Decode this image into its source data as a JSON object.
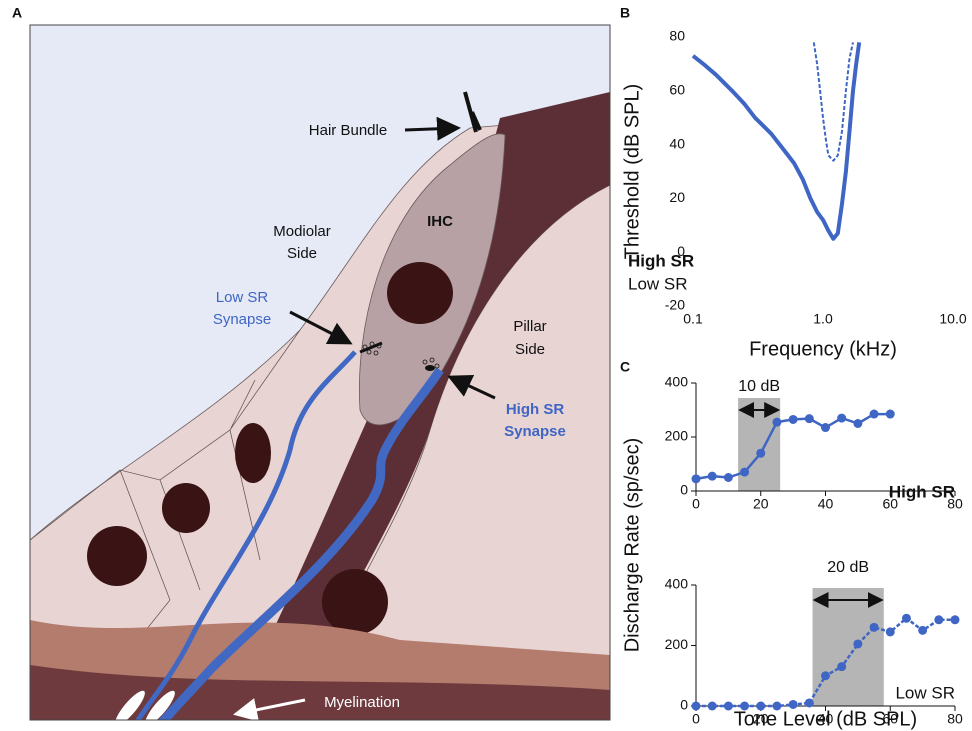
{
  "panel_labels": {
    "a": "A",
    "b": "B",
    "c": "C"
  },
  "diagram": {
    "hair_bundle": "Hair Bundle",
    "ihc": "IHC",
    "modiolar_side": [
      "Modiolar",
      "Side"
    ],
    "low_sr_synapse": [
      "Low SR",
      "Synapse"
    ],
    "pillar_side": [
      "Pillar",
      "Side"
    ],
    "high_sr_synapse": [
      "High SR",
      "Synapse"
    ],
    "myelination": "Myelination"
  },
  "chart_data": [
    {
      "type": "line",
      "xlabel": "Frequency (kHz)",
      "ylabel": "Threshold (dB SPL)",
      "xlog": true,
      "xlim": [
        0.1,
        10
      ],
      "xticks": [
        0.1,
        {
          "value": 1,
          "label": "1.0"
        },
        {
          "value": 10,
          "label": "10.0"
        }
      ],
      "ylim": [
        -20,
        80
      ],
      "yticks": [
        -20,
        0,
        20,
        40,
        60,
        80
      ],
      "axis_lines": false,
      "series": [
        {
          "name": "High SR",
          "color": "#3f66c4",
          "style": "solid",
          "x": [
            0.1,
            0.12,
            0.15,
            0.2,
            0.25,
            0.3,
            0.4,
            0.5,
            0.6,
            0.7,
            0.8,
            0.9,
            1.0,
            1.1,
            1.2,
            1.3,
            1.4,
            1.5,
            1.6,
            1.7,
            1.8,
            1.9
          ],
          "values": [
            73,
            70,
            66,
            60,
            55,
            50,
            44,
            38,
            33,
            27,
            20,
            15,
            12,
            8,
            5,
            7,
            18,
            30,
            45,
            60,
            70,
            78
          ]
        },
        {
          "name": "Low SR",
          "color": "#3f66c4",
          "style": "dashed",
          "x": [
            0.85,
            0.9,
            0.95,
            1.0,
            1.05,
            1.1,
            1.2,
            1.3,
            1.4,
            1.5,
            1.6,
            1.7
          ],
          "values": [
            78,
            70,
            60,
            50,
            42,
            36,
            34,
            36,
            45,
            60,
            72,
            78
          ]
        }
      ]
    },
    {
      "type": "line",
      "ylabel": "Discharge Rate (sp/sec)",
      "xlim": [
        0,
        80
      ],
      "xticks": [
        0,
        20,
        40,
        60,
        80
      ],
      "ylim": [
        0,
        400
      ],
      "yticks": [
        0,
        200,
        400
      ],
      "axis_lines": true,
      "band": [
        13,
        26
      ],
      "band_label": "10 dB",
      "x": [
        0,
        5,
        10,
        15,
        20,
        25,
        30,
        35,
        40,
        45,
        50,
        55,
        60
      ],
      "series": [
        {
          "name": "High SR",
          "color": "#3f66c4",
          "style": "solid",
          "values": [
            45,
            55,
            50,
            70,
            140,
            255,
            265,
            268,
            235,
            270,
            250,
            285,
            285
          ]
        }
      ]
    },
    {
      "type": "line",
      "xlabel": "Tone Level (dB SPL)",
      "xlim": [
        0,
        80
      ],
      "xticks": [
        0,
        20,
        40,
        60,
        80
      ],
      "ylim": [
        0,
        400
      ],
      "yticks": [
        0,
        200,
        400
      ],
      "axis_lines": true,
      "band": [
        36,
        58
      ],
      "band_label": "20 dB",
      "x": [
        0,
        5,
        10,
        15,
        20,
        25,
        30,
        35,
        40,
        45,
        50,
        55,
        60,
        65,
        70,
        75,
        80
      ],
      "series": [
        {
          "name": "Low SR",
          "color": "#3f66c4",
          "style": "dashed",
          "values": [
            0,
            0,
            0,
            0,
            0,
            0,
            5,
            10,
            100,
            130,
            205,
            260,
            245,
            290,
            250,
            285,
            285
          ]
        }
      ]
    }
  ]
}
